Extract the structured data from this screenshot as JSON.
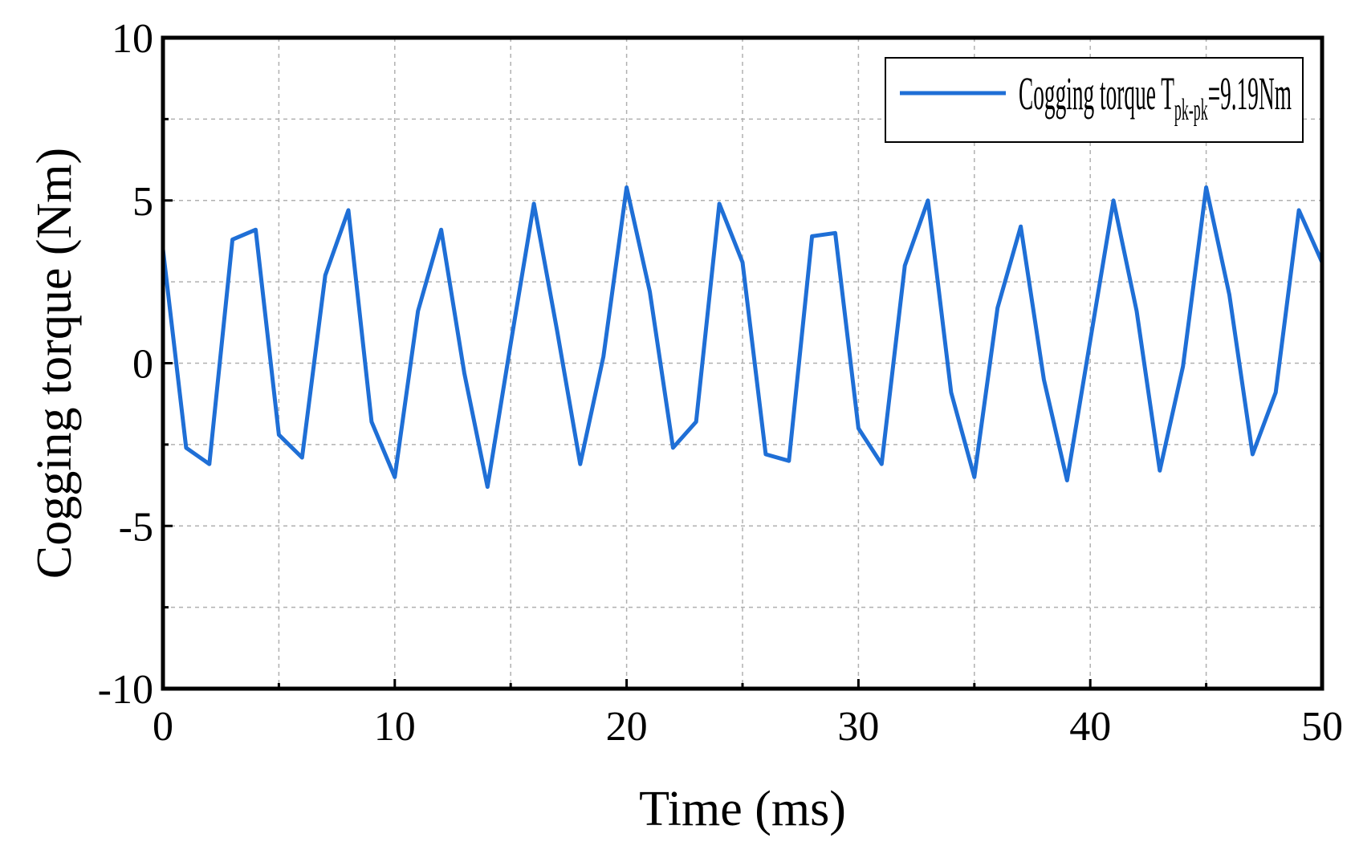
{
  "chart_data": {
    "type": "line",
    "title": "",
    "xlabel": "Time (ms)",
    "ylabel": "Cogging torque (Nm)",
    "xlim": [
      0,
      50
    ],
    "ylim": [
      -10,
      10
    ],
    "x_ticks": [
      "0",
      "10",
      "20",
      "30",
      "40",
      "50"
    ],
    "y_ticks": [
      "-10",
      "-5",
      "0",
      "5",
      "10"
    ],
    "grid": true,
    "legend_position": "top-right",
    "colors": {
      "series": "#1f6fd6",
      "axis": "#000000",
      "grid": "#b0b0b0"
    },
    "legend": {
      "main": "Cogging torque T",
      "subscript": "pk-pk",
      "suffix": "=9.19Nm"
    },
    "series": [
      {
        "name": "Cogging torque Tpk-pk=9.19Nm",
        "x": [
          0,
          1,
          2,
          3,
          4,
          5,
          6,
          7,
          8,
          9,
          10,
          11,
          12,
          13,
          14,
          15,
          16,
          17,
          18,
          19,
          20,
          21,
          22,
          23,
          24,
          25,
          26,
          27,
          28,
          29,
          30,
          31,
          32,
          33,
          34,
          35,
          36,
          37,
          38,
          39,
          40,
          41,
          42,
          43,
          44,
          45,
          46,
          47,
          48,
          49,
          50
        ],
        "values": [
          3.5,
          -2.6,
          -3.1,
          3.8,
          4.1,
          -2.2,
          -2.9,
          2.7,
          4.7,
          -1.8,
          -3.5,
          1.6,
          4.1,
          -0.3,
          -3.8,
          0.6,
          4.9,
          1.0,
          -3.1,
          0.2,
          5.4,
          2.2,
          -2.6,
          -1.8,
          4.9,
          3.1,
          -2.8,
          -3.0,
          3.9,
          4.0,
          -2.0,
          -3.1,
          3.0,
          5.0,
          -0.9,
          -3.5,
          1.7,
          4.2,
          -0.5,
          -3.6,
          0.7,
          5.0,
          1.6,
          -3.3,
          -0.1,
          5.4,
          2.1,
          -2.8,
          -0.9,
          4.7,
          3.1
        ]
      }
    ]
  }
}
